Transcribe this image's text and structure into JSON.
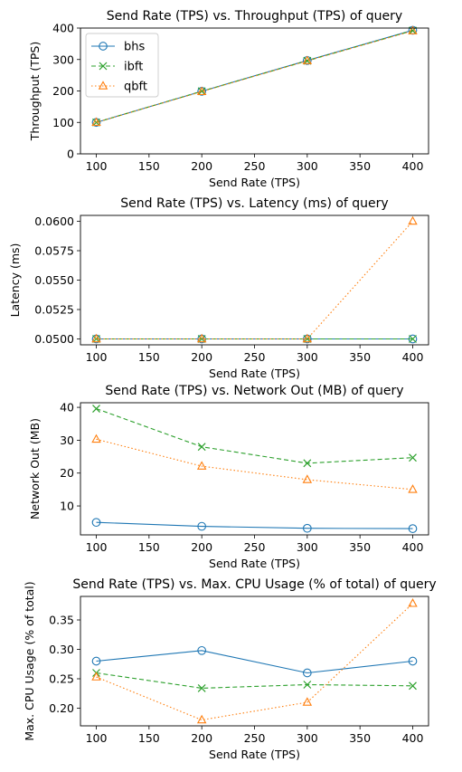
{
  "colors": {
    "bhs": "#1f77b4",
    "ibft": "#2ca02c",
    "qbft": "#ff7f0e"
  },
  "chart_data": [
    {
      "type": "line",
      "title": "Send Rate (TPS) vs. Throughput (TPS) of query",
      "xlabel": "Send Rate (TPS)",
      "ylabel": "Throughput (TPS)",
      "x": [
        100,
        200,
        300,
        400
      ],
      "xlim": [
        85,
        415
      ],
      "ylim": [
        0,
        400
      ],
      "xticks": [
        "100",
        "150",
        "200",
        "250",
        "300",
        "350",
        "400"
      ],
      "yticks": [
        "0",
        "100",
        "200",
        "300",
        "400"
      ],
      "legend": "top-left",
      "series": [
        {
          "name": "bhs",
          "marker": "circle",
          "dash": "solid",
          "values": [
            100,
            199,
            297,
            393
          ]
        },
        {
          "name": "ibft",
          "marker": "x",
          "dash": "dashed",
          "values": [
            100,
            199,
            296,
            392
          ]
        },
        {
          "name": "qbft",
          "marker": "triangle",
          "dash": "dotted",
          "values": [
            100,
            198,
            296,
            391
          ]
        }
      ]
    },
    {
      "type": "line",
      "title": "Send Rate (TPS) vs. Latency (ms) of query",
      "xlabel": "Send Rate (TPS)",
      "ylabel": "Latency (ms)",
      "x": [
        100,
        200,
        300,
        400
      ],
      "xlim": [
        85,
        415
      ],
      "ylim": [
        0.0495,
        0.0605
      ],
      "xticks": [
        "100",
        "150",
        "200",
        "250",
        "300",
        "350",
        "400"
      ],
      "yticks": [
        "0.0500",
        "0.0525",
        "0.0550",
        "0.0575",
        "0.0600"
      ],
      "series": [
        {
          "name": "bhs",
          "marker": "circle",
          "dash": "solid",
          "values": [
            0.05,
            0.05,
            0.05,
            0.05
          ]
        },
        {
          "name": "ibft",
          "marker": "x",
          "dash": "dashed",
          "values": [
            0.05,
            0.05,
            0.05,
            0.05
          ]
        },
        {
          "name": "qbft",
          "marker": "triangle",
          "dash": "dotted",
          "values": [
            0.05,
            0.05,
            0.05,
            0.06
          ]
        }
      ]
    },
    {
      "type": "line",
      "title": "Send Rate (TPS) vs. Network Out (MB) of query",
      "xlabel": "Send Rate (TPS)",
      "ylabel": "Network Out (MB)",
      "x": [
        100,
        200,
        300,
        400
      ],
      "xlim": [
        85,
        415
      ],
      "ylim": [
        1.2,
        41.4
      ],
      "xticks": [
        "100",
        "150",
        "200",
        "250",
        "300",
        "350",
        "400"
      ],
      "yticks": [
        "10",
        "20",
        "30",
        "40"
      ],
      "series": [
        {
          "name": "bhs",
          "marker": "circle",
          "dash": "solid",
          "values": [
            5.0,
            3.8,
            3.2,
            3.1
          ]
        },
        {
          "name": "ibft",
          "marker": "x",
          "dash": "dashed",
          "values": [
            39.6,
            28.0,
            23.0,
            24.7
          ]
        },
        {
          "name": "qbft",
          "marker": "triangle",
          "dash": "dotted",
          "values": [
            30.3,
            22.1,
            18.0,
            15.0
          ]
        }
      ]
    },
    {
      "type": "line",
      "title": "Send Rate (TPS) vs. Max. CPU Usage (% of total) of query",
      "xlabel": "Send Rate (TPS)",
      "ylabel": "Max. CPU Usage (% of total)",
      "x": [
        100,
        200,
        300,
        400
      ],
      "xlim": [
        85,
        415
      ],
      "ylim": [
        0.17,
        0.39
      ],
      "xticks": [
        "100",
        "150",
        "200",
        "250",
        "300",
        "350",
        "400"
      ],
      "yticks": [
        "0.20",
        "0.25",
        "0.30",
        "0.35"
      ],
      "series": [
        {
          "name": "bhs",
          "marker": "circle",
          "dash": "solid",
          "values": [
            0.28,
            0.298,
            0.26,
            0.28
          ]
        },
        {
          "name": "ibft",
          "marker": "x",
          "dash": "dashed",
          "values": [
            0.26,
            0.234,
            0.24,
            0.238
          ]
        },
        {
          "name": "qbft",
          "marker": "triangle",
          "dash": "dotted",
          "values": [
            0.253,
            0.18,
            0.21,
            0.378
          ]
        }
      ]
    }
  ]
}
